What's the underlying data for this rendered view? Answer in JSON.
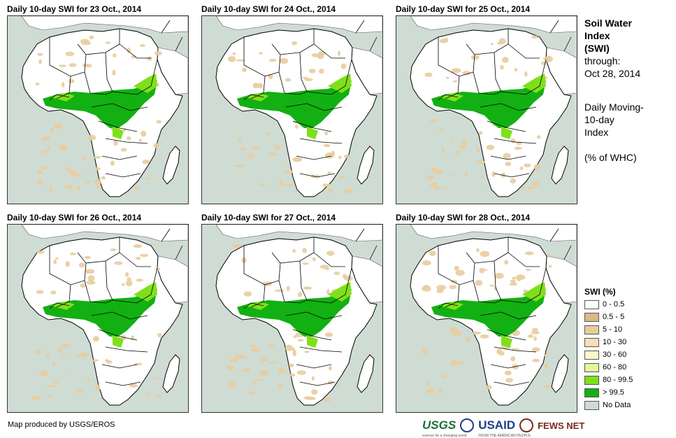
{
  "panels": [
    {
      "title": "Daily 10-day SWI for 23 Oct., 2014"
    },
    {
      "title": "Daily 10-day SWI for 24 Oct., 2014"
    },
    {
      "title": "Daily 10-day SWI for 25 Oct., 2014"
    },
    {
      "title": "Daily 10-day SWI for 26 Oct., 2014"
    },
    {
      "title": "Daily 10-day SWI for 27 Oct., 2014"
    },
    {
      "title": "Daily 10-day SWI for 28 Oct., 2014"
    }
  ],
  "info": {
    "title_line1": "Soil Water",
    "title_line2": "Index",
    "title_line3": "(SWI)",
    "through_label": "through:",
    "through_date": "Oct 28, 2014",
    "desc_line1": "Daily Moving-",
    "desc_line2": "10-day",
    "desc_line3": "Index",
    "units": "(% of WHC)"
  },
  "legend": {
    "title": "SWI (%)",
    "items": [
      {
        "label": "0 - 0.5",
        "color": "#ffffff"
      },
      {
        "label": "0.5 - 5",
        "color": "#d9b98a"
      },
      {
        "label": "5 - 10",
        "color": "#e9cc9e"
      },
      {
        "label": "10 - 30",
        "color": "#f6dfbc"
      },
      {
        "label": "30 - 60",
        "color": "#fbf8c8"
      },
      {
        "label": "60 - 80",
        "color": "#e4f79a"
      },
      {
        "label": "80 - 99.5",
        "color": "#7fe01a"
      },
      {
        "label": "> 99.5",
        "color": "#12b012"
      },
      {
        "label": "No Data",
        "color": "#cfdcd4"
      }
    ]
  },
  "footer": {
    "credit": "Map produced by USGS/EROS",
    "logo_usgs": "USGS",
    "usgs_tagline": "science for a changing world",
    "logo_usaid": "USAID",
    "usaid_tagline": "FROM THE AMERICAN PEOPLE",
    "logo_fewsnet": "FEWS NET"
  },
  "colors": {
    "water": "#cfdcd4",
    "land_dry": "#ffffff",
    "wet": "#12b012",
    "moist": "#7fe01a",
    "tan": "#e9cc9e",
    "border": "#000000"
  }
}
